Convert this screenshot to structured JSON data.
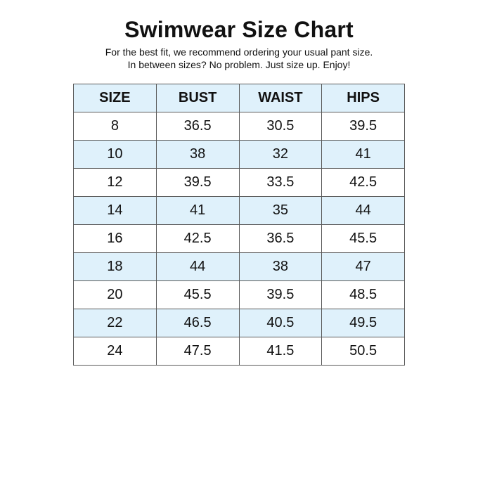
{
  "header": {
    "title": "Swimwear Size Chart",
    "subtitle_line1": "For the best fit, we recommend ordering your usual pant size.",
    "subtitle_line2": "In between sizes? No problem. Just size up. Enjoy!"
  },
  "colors": {
    "header_fill": "#dff1fb",
    "border": "#5a5a5a"
  },
  "table": {
    "columns": [
      "SIZE",
      "BUST",
      "WAIST",
      "HIPS"
    ],
    "rows": [
      [
        "8",
        "36.5",
        "30.5",
        "39.5"
      ],
      [
        "10",
        "38",
        "32",
        "41"
      ],
      [
        "12",
        "39.5",
        "33.5",
        "42.5"
      ],
      [
        "14",
        "41",
        "35",
        "44"
      ],
      [
        "16",
        "42.5",
        "36.5",
        "45.5"
      ],
      [
        "18",
        "44",
        "38",
        "47"
      ],
      [
        "20",
        "45.5",
        "39.5",
        "48.5"
      ],
      [
        "22",
        "46.5",
        "40.5",
        "49.5"
      ],
      [
        "24",
        "47.5",
        "41.5",
        "50.5"
      ]
    ]
  }
}
